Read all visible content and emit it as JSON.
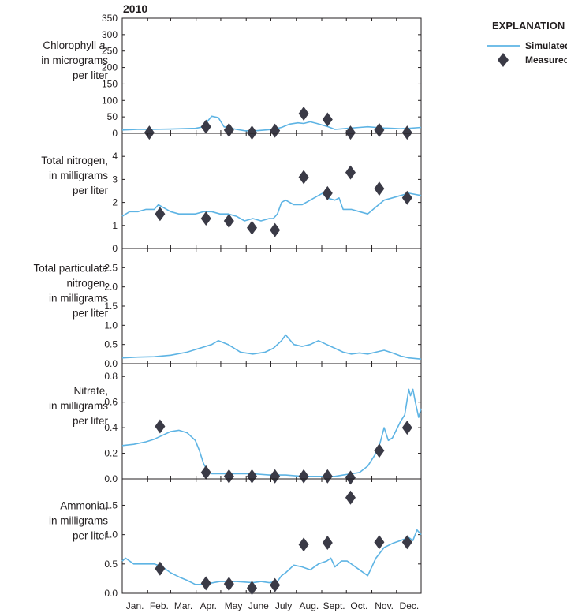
{
  "chart_data": {
    "type": "line",
    "title": "2010",
    "months": [
      "Jan.",
      "Feb.",
      "Mar.",
      "Apr.",
      "May",
      "June",
      "July",
      "Aug.",
      "Sept.",
      "Oct.",
      "Nov.",
      "Dec."
    ],
    "legend": {
      "title": "EXPLANATION",
      "simulated_label": "Simulated",
      "measured_label": "Measured",
      "placement": "top-right"
    },
    "colors": {
      "simulated": "#5eb4e4",
      "measured": "#3a3a46",
      "axis": "#231f20"
    },
    "panels": [
      {
        "id": "chlorophyll",
        "ylabel_lines": [
          [
            "Chlorophyll ",
            "a",
            ","
          ],
          [
            "in micrograms"
          ],
          [
            "per liter"
          ]
        ],
        "ylim": [
          0,
          350
        ],
        "yticks": [
          0,
          50,
          100,
          150,
          200,
          250,
          300,
          350
        ],
        "ytick_labels": [
          "0",
          "50",
          "100",
          "150",
          "200",
          "250",
          "300",
          "350"
        ],
        "simulated": {
          "x": [
            1,
            20,
            35,
            60,
            90,
            100,
            106,
            110,
            118,
            125,
            140,
            150,
            160,
            175,
            185,
            195,
            205,
            215,
            222,
            230,
            238,
            245,
            252,
            260,
            270,
            280,
            290,
            300,
            310,
            320,
            330,
            340,
            350,
            365
          ],
          "y": [
            10,
            12,
            12,
            13,
            15,
            20,
            40,
            52,
            48,
            20,
            12,
            8,
            7,
            10,
            12,
            18,
            28,
            32,
            30,
            35,
            30,
            25,
            20,
            12,
            14,
            16,
            18,
            20,
            18,
            16,
            15,
            14,
            15,
            18
          ]
        },
        "measured": {
          "x": [
            34,
            103,
            131,
            159,
            187,
            222,
            251,
            279,
            314,
            348
          ],
          "y": [
            2,
            20,
            10,
            2,
            8,
            60,
            42,
            2,
            10,
            2
          ]
        }
      },
      {
        "id": "total-nitrogen",
        "ylabel_lines": [
          [
            "Total nitrogen,"
          ],
          [
            "in milligrams"
          ],
          [
            "per liter"
          ]
        ],
        "ylim": [
          0,
          5
        ],
        "yticks": [
          0,
          1,
          2,
          3,
          4
        ],
        "ytick_labels": [
          "0",
          "1",
          "2",
          "3",
          "4"
        ],
        "simulated": {
          "x": [
            1,
            10,
            20,
            30,
            40,
            45,
            50,
            60,
            70,
            80,
            90,
            100,
            110,
            120,
            130,
            140,
            150,
            160,
            170,
            180,
            185,
            190,
            195,
            200,
            210,
            220,
            230,
            240,
            245,
            250,
            260,
            265,
            270,
            280,
            290,
            300,
            310,
            320,
            330,
            340,
            350,
            365
          ],
          "y": [
            1.4,
            1.6,
            1.6,
            1.7,
            1.7,
            1.9,
            1.8,
            1.6,
            1.5,
            1.5,
            1.5,
            1.6,
            1.6,
            1.5,
            1.5,
            1.4,
            1.2,
            1.3,
            1.2,
            1.3,
            1.3,
            1.5,
            2.0,
            2.1,
            1.9,
            1.9,
            2.1,
            2.3,
            2.4,
            2.2,
            2.1,
            2.2,
            1.7,
            1.7,
            1.6,
            1.5,
            1.8,
            2.1,
            2.2,
            2.3,
            2.4,
            2.3
          ]
        },
        "measured": {
          "x": [
            47,
            103,
            131,
            159,
            187,
            222,
            251,
            279,
            314,
            348
          ],
          "y": [
            1.5,
            1.3,
            1.2,
            0.9,
            0.8,
            3.1,
            2.4,
            3.3,
            2.6,
            2.2
          ]
        }
      },
      {
        "id": "total-particulate-nitrogen",
        "ylabel_lines": [
          [
            "Total  particulate"
          ],
          [
            "nitrogen,"
          ],
          [
            "in milligrams"
          ],
          [
            "per liter"
          ]
        ],
        "ylim": [
          0,
          3
        ],
        "yticks": [
          0,
          0.5,
          1,
          1.5,
          2,
          2.5
        ],
        "ytick_labels": [
          "0.0",
          "0.5",
          "1.0",
          "1.5",
          "2.0",
          "2.5"
        ],
        "simulated": {
          "x": [
            1,
            20,
            40,
            60,
            80,
            95,
            110,
            118,
            130,
            145,
            160,
            175,
            185,
            195,
            200,
            210,
            220,
            230,
            240,
            250,
            260,
            270,
            280,
            290,
            300,
            310,
            320,
            330,
            340,
            350,
            365
          ],
          "y": [
            0.15,
            0.17,
            0.18,
            0.22,
            0.3,
            0.4,
            0.5,
            0.6,
            0.5,
            0.3,
            0.25,
            0.3,
            0.4,
            0.6,
            0.75,
            0.5,
            0.45,
            0.5,
            0.6,
            0.5,
            0.4,
            0.3,
            0.25,
            0.28,
            0.25,
            0.3,
            0.35,
            0.28,
            0.2,
            0.15,
            0.12
          ]
        },
        "measured": {
          "x": [],
          "y": []
        }
      },
      {
        "id": "nitrate",
        "ylabel_lines": [
          [
            "Nitrate,"
          ],
          [
            "in milligrams"
          ],
          [
            "per liter"
          ]
        ],
        "ylim": [
          0,
          0.9
        ],
        "yticks": [
          0,
          0.2,
          0.4,
          0.6,
          0.8
        ],
        "ytick_labels": [
          "0.0",
          "0.2",
          "0.4",
          "0.6",
          "0.8"
        ],
        "simulated": {
          "x": [
            1,
            15,
            30,
            40,
            50,
            60,
            70,
            80,
            90,
            95,
            100,
            105,
            110,
            120,
            140,
            160,
            180,
            200,
            220,
            240,
            260,
            270,
            280,
            290,
            300,
            310,
            315,
            320,
            325,
            330,
            340,
            345,
            350,
            352,
            355,
            358,
            362,
            365
          ],
          "y": [
            0.26,
            0.27,
            0.29,
            0.31,
            0.34,
            0.37,
            0.38,
            0.36,
            0.3,
            0.22,
            0.12,
            0.06,
            0.04,
            0.04,
            0.04,
            0.04,
            0.03,
            0.03,
            0.02,
            0.02,
            0.02,
            0.03,
            0.04,
            0.05,
            0.1,
            0.2,
            0.28,
            0.4,
            0.3,
            0.32,
            0.45,
            0.5,
            0.7,
            0.65,
            0.7,
            0.6,
            0.48,
            0.55
          ]
        },
        "measured": {
          "x": [
            47,
            103,
            131,
            159,
            187,
            222,
            251,
            279,
            314,
            348
          ],
          "y": [
            0.41,
            0.05,
            0.02,
            0.02,
            0.02,
            0.02,
            0.02,
            0.01,
            0.22,
            0.4
          ]
        }
      },
      {
        "id": "ammonia",
        "ylabel_lines": [
          [
            "Ammonia,"
          ],
          [
            "in milligrams"
          ],
          [
            "per liter"
          ]
        ],
        "ylim": [
          0,
          1.95
        ],
        "yticks": [
          0,
          0.5,
          1,
          1.5
        ],
        "ytick_labels": [
          "0.0",
          "0.5",
          "1.0",
          "1.5"
        ],
        "simulated": {
          "x": [
            1,
            5,
            15,
            30,
            40,
            50,
            60,
            70,
            80,
            90,
            100,
            120,
            140,
            160,
            170,
            180,
            190,
            195,
            200,
            210,
            220,
            230,
            240,
            250,
            255,
            260,
            268,
            275,
            282,
            290,
            300,
            305,
            310,
            320,
            330,
            340,
            350,
            355,
            360,
            365
          ],
          "y": [
            0.55,
            0.6,
            0.5,
            0.5,
            0.5,
            0.45,
            0.35,
            0.28,
            0.22,
            0.15,
            0.15,
            0.2,
            0.2,
            0.18,
            0.2,
            0.18,
            0.2,
            0.3,
            0.35,
            0.48,
            0.45,
            0.4,
            0.5,
            0.55,
            0.6,
            0.45,
            0.55,
            0.55,
            0.48,
            0.4,
            0.3,
            0.45,
            0.6,
            0.78,
            0.85,
            0.9,
            0.95,
            0.9,
            1.08,
            1.0
          ]
        },
        "measured": {
          "x": [
            47,
            103,
            131,
            159,
            187,
            222,
            251,
            279,
            314,
            348
          ],
          "y": [
            0.42,
            0.17,
            0.16,
            0.09,
            0.14,
            0.83,
            0.86,
            1.63,
            0.87,
            0.87
          ]
        }
      }
    ]
  }
}
